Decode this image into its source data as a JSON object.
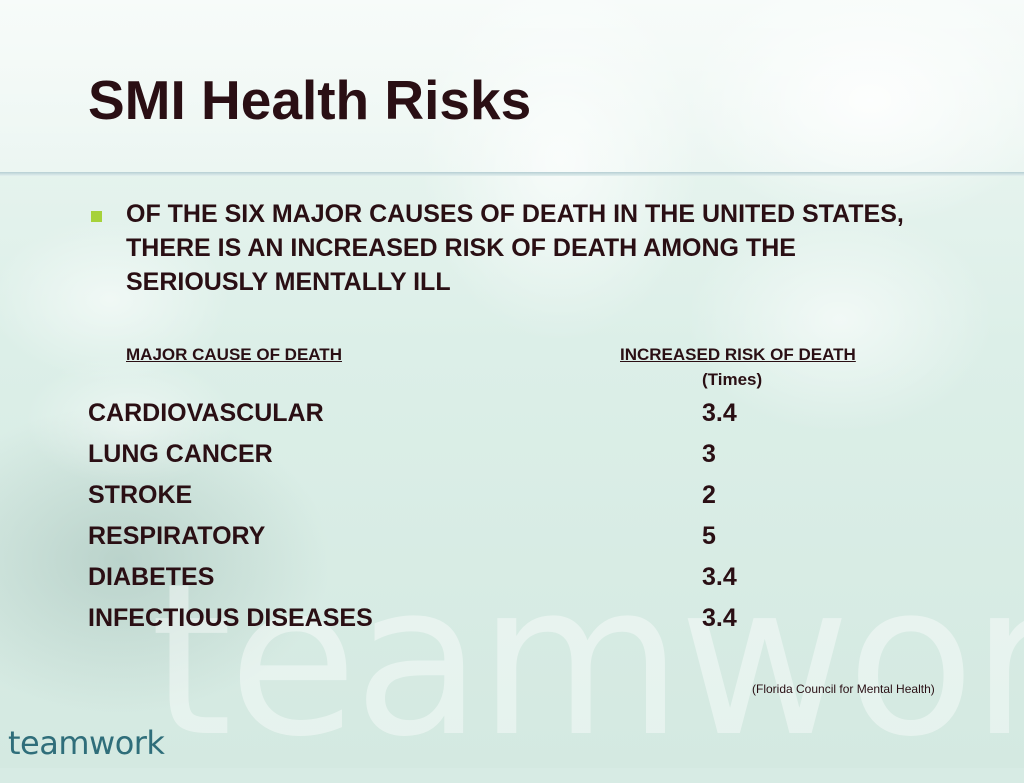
{
  "slide": {
    "title": "SMI Health Risks",
    "bullet": "OF THE SIX MAJOR CAUSES OF DEATH IN THE UNITED STATES, THERE IS AN INCREASED RISK OF DEATH AMONG THE SERIOUSLY MENTALLY ILL",
    "bullet_color": "#a6d23a",
    "text_color": "#2a0f14",
    "table": {
      "header_cause": "MAJOR CAUSE OF DEATH",
      "header_risk": "INCREASED RISK OF DEATH",
      "header_risk_unit": "(Times)",
      "rows": [
        {
          "cause": "CARDIOVASCULAR",
          "risk": "3.4"
        },
        {
          "cause": "LUNG CANCER",
          "risk": "3"
        },
        {
          "cause": "STROKE",
          "risk": "2"
        },
        {
          "cause": "RESPIRATORY",
          "risk": "5"
        },
        {
          "cause": "DIABETES",
          "risk": "3.4"
        },
        {
          "cause": "INFECTIOUS DISEASES",
          "risk": "3.4"
        }
      ]
    },
    "source": "(Florida Council for Mental Health)",
    "logo_text": "teamwork",
    "watermark_text": "teamwork"
  }
}
